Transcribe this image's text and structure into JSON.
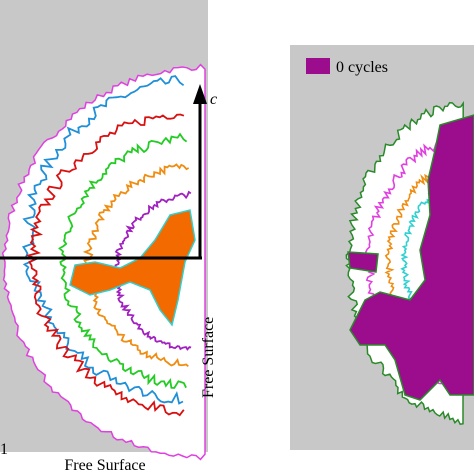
{
  "left_panel": {
    "axis_label": "c",
    "right_edge_label": "Free Surface",
    "bottom_edge_label": "Free Surface",
    "corner_label": "1"
  },
  "right_panel": {
    "legend": {
      "label": "0 cycles"
    }
  }
}
